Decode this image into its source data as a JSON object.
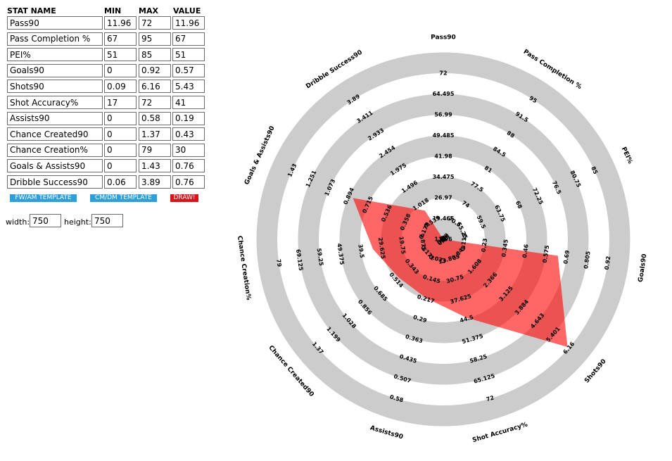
{
  "headers": {
    "stat_name": "STAT NAME",
    "min": "MIN",
    "max": "MAX",
    "value": "VALUE"
  },
  "rows": [
    {
      "name": "Pass90",
      "min": "11.96",
      "max": "72",
      "value": "11.96"
    },
    {
      "name": "Pass Completion %",
      "min": "67",
      "max": "95",
      "value": "67"
    },
    {
      "name": "PEI%",
      "min": "51",
      "max": "85",
      "value": "51"
    },
    {
      "name": "Goals90",
      "min": "0",
      "max": "0.92",
      "value": "0.57"
    },
    {
      "name": "Shots90",
      "min": "0.09",
      "max": "6.16",
      "value": "5.43"
    },
    {
      "name": "Shot Accuracy%",
      "min": "17",
      "max": "72",
      "value": "41"
    },
    {
      "name": "Assists90",
      "min": "0",
      "max": "0.58",
      "value": "0.19"
    },
    {
      "name": "Chance Created90",
      "min": "0",
      "max": "1.37",
      "value": "0.43"
    },
    {
      "name": "Chance Creation%",
      "min": "0",
      "max": "79",
      "value": "30"
    },
    {
      "name": "Goals & Assists90",
      "min": "0",
      "max": "1.43",
      "value": "0.76"
    },
    {
      "name": "Dribble Success90",
      "min": "0.06",
      "max": "3.89",
      "value": "0.76"
    }
  ],
  "buttons": {
    "fw_template": "FW/AM TEMPLATE",
    "cm_template": "CM/DM TEMPLATE",
    "draw": "DRAW!"
  },
  "size": {
    "width_label": "width:",
    "width_value": "750",
    "height_label": "height:",
    "height_value": "750"
  },
  "colors": {
    "template_button": "#2e9fd8",
    "draw_button": "#d8141b",
    "ring": "#cccccc",
    "fill": "#ff0000"
  },
  "chart_data": {
    "type": "radar",
    "axes": [
      {
        "name": "Pass90",
        "ticks": [
          "11.96",
          "19.465",
          "26.97",
          "34.475",
          "41.98",
          "49.485",
          "56.99",
          "64.495",
          "72"
        ]
      },
      {
        "name": "Pass Completion %",
        "ticks": [
          "67",
          "70.5",
          "74",
          "77.5",
          "81",
          "84.5",
          "88",
          "91.5",
          "95"
        ]
      },
      {
        "name": "PEI%",
        "ticks": [
          "51",
          "55.25",
          "59.5",
          "63.75",
          "68",
          "72.25",
          "76.5",
          "80.75",
          "85"
        ]
      },
      {
        "name": "Goals90",
        "ticks": [
          "0",
          "0.115",
          "0.23",
          "0.345",
          "0.46",
          "0.575",
          "0.69",
          "0.805",
          "0.92"
        ]
      },
      {
        "name": "Shots90",
        "ticks": [
          "0.09",
          "0.849",
          "1.608",
          "2.366",
          "3.125",
          "3.884",
          "4.643",
          "5.401",
          "6.16"
        ]
      },
      {
        "name": "Shot Accuracy%",
        "ticks": [
          "17",
          "23.875",
          "30.75",
          "37.625",
          "44.5",
          "51.375",
          "58.25",
          "65.125",
          "72"
        ]
      },
      {
        "name": "Assists90",
        "ticks": [
          "0",
          "0.073",
          "0.145",
          "0.217",
          "0.29",
          "0.363",
          "0.435",
          "0.507",
          "0.58"
        ]
      },
      {
        "name": "Chance Created90",
        "ticks": [
          "0",
          "0.171",
          "0.343",
          "0.514",
          "0.685",
          "0.856",
          "1.028",
          "1.199",
          "1.37"
        ]
      },
      {
        "name": "Chance Creation%",
        "ticks": [
          "0",
          "9.875",
          "19.75",
          "29.625",
          "39.5",
          "49.375",
          "59.25",
          "69.125",
          "79"
        ]
      },
      {
        "name": "Goals & Assists90",
        "ticks": [
          "0",
          "0.179",
          "0.358",
          "0.536",
          "0.715",
          "0.894",
          "1.073",
          "1.251",
          "1.43"
        ]
      },
      {
        "name": "Dribble Success90",
        "ticks": [
          "0.06",
          "0.539",
          "1.018",
          "1.496",
          "1.975",
          "2.454",
          "2.933",
          "3.411",
          "3.89"
        ]
      }
    ],
    "min": [
      11.96,
      67,
      51,
      0,
      0.09,
      17,
      0,
      0,
      0,
      0,
      0.06
    ],
    "max": [
      72,
      95,
      85,
      0.92,
      6.16,
      72,
      0.58,
      1.37,
      79,
      1.43,
      3.89
    ],
    "values": [
      11.96,
      67,
      51,
      0.57,
      5.43,
      41,
      0.19,
      0.43,
      30,
      0.76,
      0.76
    ]
  }
}
